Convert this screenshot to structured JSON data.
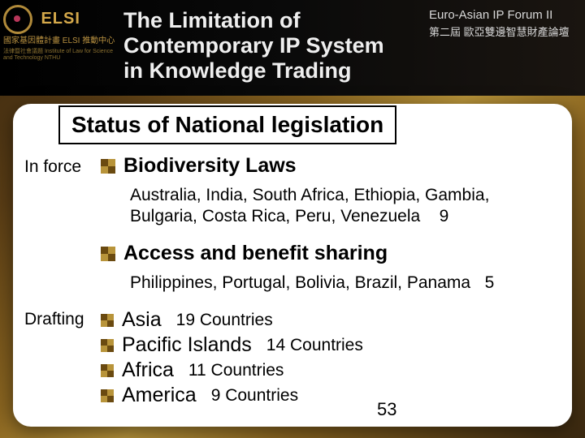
{
  "header": {
    "org_name": "ELSI",
    "org_sub1": "國家基因體計畫\nELSI 推動中心",
    "org_sub2": "法律暨社會議題\nInstitute of Law\nfor Science and Technology\nNTHU",
    "title_line1": "The Limitation of",
    "title_line2": "Contemporary IP System",
    "title_line3": "in Knowledge Trading",
    "forum_en": "Euro-Asian IP Forum II",
    "forum_zh": "第二屆 歐亞雙邊智慧財產論壇"
  },
  "slide_title": "Status of National legislation",
  "status_labels": {
    "in_force": "In force",
    "drafting": "Drafting"
  },
  "sections": [
    {
      "heading": "Biodiversity Laws",
      "detail": "Australia, India, South Africa, Ethiopia, Gambia, Bulgaria, Costa Rica, Peru, Venezuela",
      "count": "9"
    },
    {
      "heading": "Access and benefit sharing",
      "detail": "Philippines, Portugal, Bolivia, Brazil, Panama",
      "count": "5"
    }
  ],
  "regions": [
    {
      "name": "Asia",
      "count": "19 Countries"
    },
    {
      "name": "Pacific Islands",
      "count": "14 Countries"
    },
    {
      "name": "Africa",
      "count": "11 Countries"
    },
    {
      "name": "America",
      "count": "9 Countries"
    }
  ],
  "total": "53",
  "colors": {
    "header_bg": "#000000",
    "accent": "#b8943a",
    "card_bg": "#ffffff",
    "text": "#000000"
  }
}
